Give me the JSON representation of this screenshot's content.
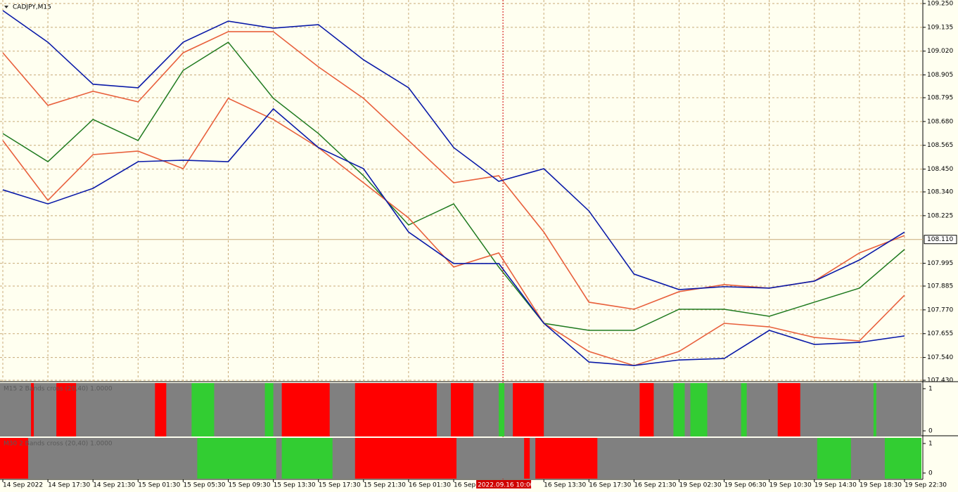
{
  "chart_data": [
    {
      "type": "line",
      "title": "CADJPY,M15",
      "x": [
        0,
        16,
        32,
        48,
        64,
        80,
        96,
        112,
        128,
        144,
        160,
        176,
        192,
        208,
        224,
        240,
        256,
        272,
        288,
        304,
        320
      ],
      "xlim": [
        -1,
        326.5
      ],
      "xticks": [
        {
          "value": 0,
          "label": "14 Sep 2022"
        },
        {
          "value": 16,
          "label": "14 Sep 17:30"
        },
        {
          "value": 32,
          "label": "14 Sep 21:30"
        },
        {
          "value": 48,
          "label": "15 Sep 01:30"
        },
        {
          "value": 64,
          "label": "15 Sep 05:30"
        },
        {
          "value": 80,
          "label": "15 Sep 09:30"
        },
        {
          "value": 96,
          "label": "15 Sep 13:30"
        },
        {
          "value": 112,
          "label": "15 Sep 17:30"
        },
        {
          "value": 128,
          "label": "15 Sep 21:30"
        },
        {
          "value": 144,
          "label": "16 Sep 01:30"
        },
        {
          "value": 160,
          "label": "16 Sep"
        },
        {
          "value": 192,
          "label": "16 Sep 13:30"
        },
        {
          "value": 208,
          "label": "16 Sep 17:30"
        },
        {
          "value": 224,
          "label": "16 Sep 21:30"
        },
        {
          "value": 240,
          "label": "19 Sep 02:30"
        },
        {
          "value": 256,
          "label": "19 Sep 06:30"
        },
        {
          "value": 272,
          "label": "19 Sep 10:30"
        },
        {
          "value": 288,
          "label": "19 Sep 14:30"
        },
        {
          "value": 304,
          "label": "19 Sep 18:30"
        },
        {
          "value": 320,
          "label": "19 Sep 22:30"
        }
      ],
      "ylim": [
        107.43,
        109.25
      ],
      "yticks": [
        {
          "value": 109.25,
          "label": "109.250"
        },
        109.135,
        {
          "value": 109.02,
          "label": "109.020"
        },
        108.905,
        108.795,
        {
          "value": 108.68,
          "label": "108.680"
        },
        108.565,
        {
          "value": 108.45,
          "label": "108.450"
        },
        {
          "value": 108.34,
          "label": "108.340"
        },
        108.225,
        107.995,
        107.885,
        {
          "value": 107.77,
          "label": "107.770"
        },
        107.655,
        {
          "value": 107.54,
          "label": "107.540"
        },
        {
          "value": 107.43,
          "label": "107.430"
        }
      ],
      "current_price": {
        "value": 108.11,
        "label": "108.110"
      },
      "crosshair": {
        "x": 177.5,
        "label": "2022.09.16 10:00"
      },
      "grid": true,
      "series": [
        {
          "color": "#1f7a1f",
          "values": [
            108.622,
            108.486,
            108.69,
            108.588,
            108.927,
            109.063,
            108.792,
            108.622,
            108.418,
            108.18,
            108.282,
            107.977,
            107.705,
            107.671,
            107.671,
            107.773,
            107.773,
            107.739,
            107.807,
            107.875,
            108.062
          ]
        },
        {
          "color": "#e8603c",
          "values": [
            109.012,
            108.758,
            108.826,
            108.775,
            109.012,
            109.114,
            109.114,
            108.944,
            108.792,
            108.588,
            108.384,
            108.418,
            108.146,
            107.807,
            107.773,
            107.858,
            107.892,
            107.875,
            107.909,
            108.045,
            108.129
          ]
        },
        {
          "color": "#e8603c",
          "values": [
            108.588,
            108.299,
            108.52,
            108.537,
            108.452,
            108.792,
            108.69,
            108.554,
            108.384,
            108.214,
            107.977,
            108.045,
            107.705,
            107.569,
            107.501,
            107.569,
            107.705,
            107.688,
            107.637,
            107.62,
            107.841
          ]
        },
        {
          "color": "#0a1aa8",
          "values": [
            109.216,
            109.063,
            108.86,
            108.843,
            109.063,
            109.165,
            109.131,
            109.148,
            108.978,
            108.843,
            108.554,
            108.391,
            108.452,
            108.248,
            107.943,
            107.868,
            107.882,
            107.875,
            107.909,
            108.011,
            108.146
          ]
        },
        {
          "color": "#0a1aa8",
          "values": [
            108.35,
            108.282,
            108.357,
            108.486,
            108.493,
            108.486,
            108.741,
            108.554,
            108.452,
            108.146,
            107.994,
            107.994,
            107.705,
            107.518,
            107.501,
            107.528,
            107.535,
            107.671,
            107.603,
            107.613,
            107.644
          ]
        }
      ]
    },
    {
      "type": "segments",
      "title": "M15 2 Bands cross (20,40) 1.0000",
      "xlim": [
        -1,
        326.5
      ],
      "ylim": [
        0,
        1
      ],
      "yticks": [
        0,
        1
      ],
      "background": "#808080",
      "segments": [
        {
          "start": 10,
          "end": 11,
          "color": "#ff0000"
        },
        {
          "start": 19,
          "end": 26,
          "color": "#ff0000"
        },
        {
          "start": 54,
          "end": 58,
          "color": "#ff0000"
        },
        {
          "start": 99,
          "end": 116,
          "color": "#ff0000"
        },
        {
          "start": 125,
          "end": 154,
          "color": "#ff0000"
        },
        {
          "start": 159,
          "end": 167,
          "color": "#ff0000"
        },
        {
          "start": 181,
          "end": 192,
          "color": "#ff0000"
        },
        {
          "start": 226,
          "end": 231,
          "color": "#ff0000"
        },
        {
          "start": 275,
          "end": 283,
          "color": "#ff0000"
        },
        {
          "start": 67,
          "end": 75,
          "color": "#32cd32"
        },
        {
          "start": 93,
          "end": 96,
          "color": "#32cd32"
        },
        {
          "start": 176,
          "end": 178,
          "color": "#32cd32"
        },
        {
          "start": 238,
          "end": 242,
          "color": "#32cd32"
        },
        {
          "start": 244,
          "end": 250,
          "color": "#32cd32"
        },
        {
          "start": 262,
          "end": 264,
          "color": "#32cd32"
        },
        {
          "start": 309,
          "end": 310,
          "color": "#32cd32"
        }
      ]
    },
    {
      "type": "segments",
      "title": "M30 2 Bands cross (20,40) 1.0000",
      "xlim": [
        -1,
        326.5
      ],
      "ylim": [
        0,
        1
      ],
      "yticks": [
        0,
        1
      ],
      "background": "#808080",
      "segments": [
        {
          "start": -1,
          "end": 9,
          "color": "#ff0000"
        },
        {
          "start": 125,
          "end": 161,
          "color": "#ff0000"
        },
        {
          "start": 185,
          "end": 187,
          "color": "#ff0000"
        },
        {
          "start": 189,
          "end": 211,
          "color": "#ff0000"
        },
        {
          "start": 69,
          "end": 97,
          "color": "#32cd32"
        },
        {
          "start": 99,
          "end": 117,
          "color": "#32cd32"
        },
        {
          "start": 289,
          "end": 301,
          "color": "#32cd32"
        },
        {
          "start": 313,
          "end": 326,
          "color": "#32cd32"
        }
      ]
    }
  ]
}
